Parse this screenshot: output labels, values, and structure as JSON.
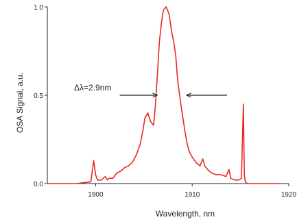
{
  "chart_data": {
    "type": "line",
    "xlabel": "Wavelength, nm",
    "ylabel": "OSA Signal, a.u.",
    "xlim": [
      1895,
      1920
    ],
    "ylim": [
      0.0,
      1.0
    ],
    "xticks": [
      "1900",
      "1910",
      "1920"
    ],
    "yticks": [
      "0.0",
      "0.5",
      "1.0"
    ],
    "grid": false,
    "colors": {
      "series": "#e8281e",
      "axis": "#222222",
      "annotation": "#222222"
    },
    "annotation": {
      "text": "Δλ=2.9nm",
      "arrow_y": 0.5,
      "left_arrow_x": [
        1902.5,
        1906.4
      ],
      "right_arrow_x": [
        1909.4,
        1913.6
      ]
    },
    "series": [
      {
        "x": [
          1895.0,
          1898.0,
          1899.5,
          1899.8,
          1900.0,
          1900.2,
          1900.6,
          1901.0,
          1901.2,
          1901.4,
          1901.8,
          1902.2,
          1902.6,
          1903.0,
          1903.4,
          1903.8,
          1904.2,
          1904.6,
          1904.9,
          1905.1,
          1905.4,
          1905.7,
          1906.0,
          1906.2,
          1906.4,
          1906.6,
          1906.8,
          1907.0,
          1907.3,
          1907.6,
          1907.9,
          1908.1,
          1908.3,
          1908.5,
          1908.7,
          1908.9,
          1909.1,
          1909.3,
          1909.5,
          1909.7,
          1910.0,
          1910.4,
          1910.8,
          1911.1,
          1911.3,
          1911.6,
          1912.0,
          1912.5,
          1913.0,
          1913.5,
          1913.8,
          1914.0,
          1914.4,
          1914.8,
          1915.1,
          1915.3,
          1915.4,
          1915.5,
          1915.7,
          1916.0,
          1917.0,
          1919.0
        ],
        "y": [
          0.0,
          0.0,
          0.01,
          0.13,
          0.05,
          0.02,
          0.02,
          0.04,
          0.02,
          0.03,
          0.03,
          0.06,
          0.07,
          0.09,
          0.1,
          0.12,
          0.16,
          0.22,
          0.3,
          0.37,
          0.4,
          0.35,
          0.33,
          0.45,
          0.62,
          0.8,
          0.9,
          0.98,
          1.0,
          0.96,
          0.85,
          0.8,
          0.72,
          0.58,
          0.5,
          0.42,
          0.35,
          0.28,
          0.22,
          0.18,
          0.15,
          0.12,
          0.1,
          0.14,
          0.1,
          0.08,
          0.06,
          0.05,
          0.05,
          0.04,
          0.08,
          0.03,
          0.02,
          0.02,
          0.03,
          0.45,
          0.05,
          0.01,
          0.0,
          0.0,
          0.0,
          0.0
        ]
      }
    ]
  }
}
